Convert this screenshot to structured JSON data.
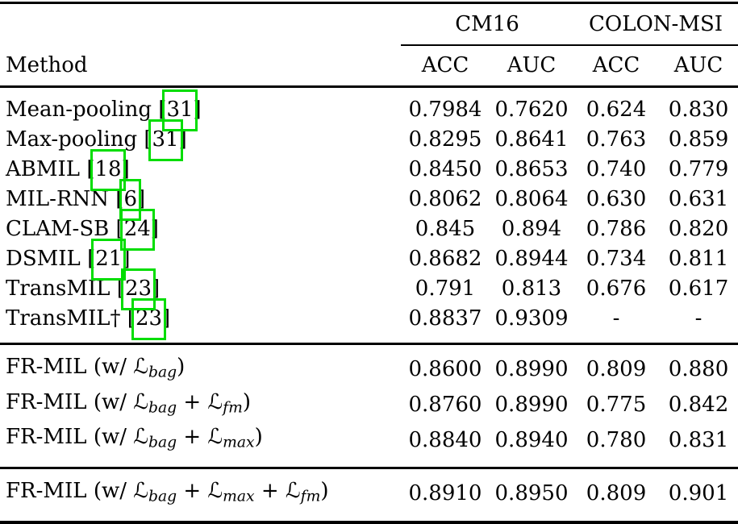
{
  "annotation": {
    "highlight_color": "#00dd00"
  },
  "table": {
    "method_header": "Method",
    "col_groups": [
      "CM16",
      "COLON-MSI"
    ],
    "sub_headers": [
      "ACC",
      "AUC",
      "ACC",
      "AUC"
    ],
    "loss_symbol": "ℒ",
    "groups": [
      {
        "rows": [
          {
            "method": [
              {
                "t": "text",
                "v": "Mean-pooling "
              },
              {
                "t": "cite",
                "pre": "[",
                "num": "31",
                "post": "]"
              }
            ],
            "values": [
              "0.7984",
              "0.7620",
              "0.624",
              "0.830"
            ]
          },
          {
            "method": [
              {
                "t": "text",
                "v": "Max-pooling "
              },
              {
                "t": "cite",
                "pre": "[",
                "num": "31",
                "post": "]"
              }
            ],
            "values": [
              "0.8295",
              "0.8641",
              "0.763",
              "0.859"
            ]
          },
          {
            "method": [
              {
                "t": "text",
                "v": "ABMIL "
              },
              {
                "t": "cite",
                "pre": "[",
                "num": "18",
                "post": "]"
              }
            ],
            "values": [
              "0.8450",
              "0.8653",
              "0.740",
              "0.779"
            ]
          },
          {
            "method": [
              {
                "t": "text",
                "v": "MIL-RNN "
              },
              {
                "t": "cite",
                "pre": "[",
                "num": "6",
                "post": "]"
              }
            ],
            "values": [
              "0.8062",
              "0.8064",
              "0.630",
              "0.631"
            ]
          },
          {
            "method": [
              {
                "t": "text",
                "v": "CLAM-SB "
              },
              {
                "t": "cite",
                "pre": "[",
                "num": "24",
                "post": "]"
              }
            ],
            "values": [
              "0.845",
              "0.894",
              "0.786",
              "0.820"
            ]
          },
          {
            "method": [
              {
                "t": "text",
                "v": "DSMIL "
              },
              {
                "t": "cite",
                "pre": "[",
                "num": "21",
                "post": "]"
              }
            ],
            "values": [
              "0.8682",
              "0.8944",
              "0.734",
              "0.811"
            ]
          },
          {
            "method": [
              {
                "t": "text",
                "v": "TransMIL "
              },
              {
                "t": "cite",
                "pre": "[",
                "num": "23",
                "post": "]"
              }
            ],
            "values": [
              "0.791",
              "0.813",
              "0.676",
              "0.617"
            ]
          },
          {
            "method": [
              {
                "t": "text",
                "v": "TransMIL† "
              },
              {
                "t": "cite",
                "pre": "[",
                "num": "23",
                "post": "]"
              }
            ],
            "values": [
              "0.8837",
              "0.9309",
              "-",
              "-"
            ]
          }
        ]
      },
      {
        "rows": [
          {
            "method": [
              {
                "t": "text",
                "v": "FR-MIL (w/ "
              },
              {
                "t": "loss",
                "sub": "bag"
              },
              {
                "t": "text",
                "v": ")"
              }
            ],
            "values": [
              "0.8600",
              "0.8990",
              "0.809",
              "0.880"
            ]
          },
          {
            "method": [
              {
                "t": "text",
                "v": "FR-MIL (w/ "
              },
              {
                "t": "loss",
                "sub": "bag"
              },
              {
                "t": "text",
                "v": " + "
              },
              {
                "t": "loss",
                "sub": "fm"
              },
              {
                "t": "text",
                "v": ")"
              }
            ],
            "values": [
              "0.8760",
              "0.8990",
              "0.775",
              "0.842"
            ]
          },
          {
            "method": [
              {
                "t": "text",
                "v": "FR-MIL (w/ "
              },
              {
                "t": "loss",
                "sub": "bag"
              },
              {
                "t": "text",
                "v": " + "
              },
              {
                "t": "loss",
                "sub": "max"
              },
              {
                "t": "text",
                "v": ")"
              }
            ],
            "values": [
              "0.8840",
              "0.8940",
              "0.780",
              "0.831"
            ]
          }
        ]
      },
      {
        "rows": [
          {
            "method": [
              {
                "t": "text",
                "v": "FR-MIL (w/ "
              },
              {
                "t": "loss",
                "sub": "bag"
              },
              {
                "t": "text",
                "v": " + "
              },
              {
                "t": "loss",
                "sub": "max"
              },
              {
                "t": "text",
                "v": " + "
              },
              {
                "t": "loss",
                "sub": "fm"
              },
              {
                "t": "text",
                "v": ")"
              }
            ],
            "values": [
              "0.8910",
              "0.8950",
              "0.809",
              "0.901"
            ]
          }
        ]
      }
    ]
  }
}
